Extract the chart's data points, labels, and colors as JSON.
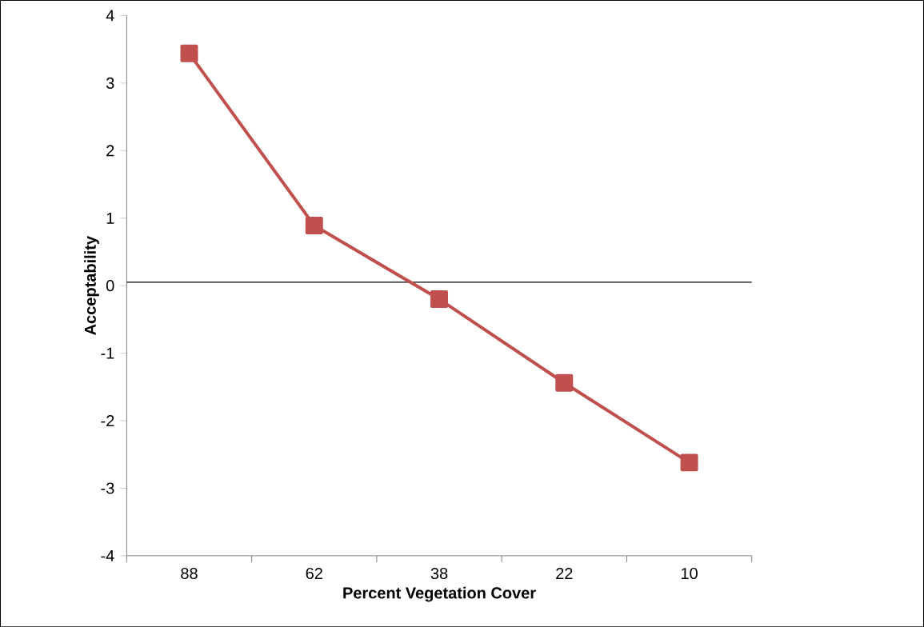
{
  "chart_data": {
    "type": "line",
    "xlabel": "Percent Vegetation Cover",
    "ylabel": "Acceptability",
    "categories": [
      "88",
      "62",
      "38",
      "22",
      "10"
    ],
    "values": [
      3.44,
      0.89,
      -0.2,
      -1.44,
      -2.62
    ],
    "color": "#c0504d",
    "marker": "square",
    "line_style": "solid",
    "ylim": [
      -4,
      4
    ],
    "yticks": [
      -4,
      -3,
      -2,
      -1,
      0,
      1,
      2,
      3,
      4
    ],
    "ref_lines": [
      {
        "axis": "y",
        "value": 0.05,
        "color": "#000000"
      }
    ],
    "grid": false
  }
}
